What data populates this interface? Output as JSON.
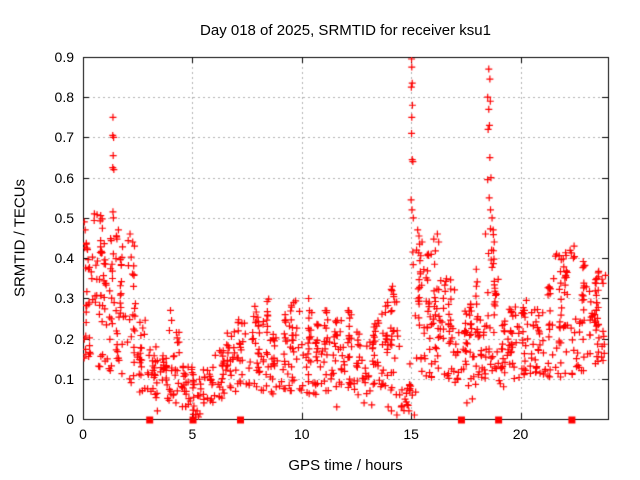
{
  "figure_title": "Day 018 of 2025, SRMTID for receiver ksu1",
  "colors": {
    "background": "#ffffff",
    "frame": "#000000",
    "grid": "#b0b0b0",
    "points": "#ff0000",
    "text": "#000000"
  },
  "chart_data": {
    "type": "scatter",
    "title": "Day 018 of 2025, SRMTID for receiver ksu1",
    "xlabel": "GPS time / hours",
    "ylabel": "SRMTID / TECUs",
    "xlim": [
      0,
      24
    ],
    "ylim": [
      0,
      0.9
    ],
    "xticks": [
      0,
      5,
      10,
      15,
      20
    ],
    "xtick_labels": [
      "0",
      "5",
      "10",
      "15",
      "20"
    ],
    "yticks": [
      0,
      0.1,
      0.2,
      0.3,
      0.4,
      0.5,
      0.6,
      0.7,
      0.8,
      0.9
    ],
    "ytick_labels": [
      "0",
      "0.1",
      "0.2",
      "0.3",
      "0.4",
      "0.5",
      "0.6",
      "0.7",
      "0.8",
      "0.9"
    ],
    "grid": true,
    "legend": null,
    "marker": {
      "shape": "plus",
      "color": "#ff0000",
      "size": 7
    },
    "seed": 20250118,
    "density_bins": {
      "description": "Approximate envelope of the dense + scatter: [x_center_hours, y_min, y_max, n_points, skew_power]",
      "width": 0.5,
      "bins": [
        [
          0.25,
          0.15,
          0.47,
          30,
          1.3
        ],
        [
          0.75,
          0.13,
          0.51,
          30,
          1.4
        ],
        [
          1.25,
          0.12,
          0.45,
          30,
          1.4
        ],
        [
          1.75,
          0.11,
          0.47,
          30,
          1.4
        ],
        [
          2.25,
          0.08,
          0.46,
          26,
          1.7
        ],
        [
          2.75,
          0.06,
          0.25,
          22,
          1.5
        ],
        [
          3.25,
          0.05,
          0.19,
          20,
          1.5
        ],
        [
          3.75,
          0.04,
          0.16,
          20,
          1.5
        ],
        [
          4.25,
          0.04,
          0.22,
          20,
          1.6
        ],
        [
          4.75,
          0.03,
          0.14,
          20,
          1.4
        ],
        [
          5.25,
          0.01,
          0.13,
          20,
          1.3
        ],
        [
          5.75,
          0.04,
          0.13,
          20,
          1.3
        ],
        [
          6.25,
          0.05,
          0.17,
          20,
          1.4
        ],
        [
          6.75,
          0.06,
          0.22,
          22,
          1.5
        ],
        [
          7.25,
          0.07,
          0.26,
          22,
          1.5
        ],
        [
          7.75,
          0.08,
          0.3,
          24,
          1.6
        ],
        [
          8.25,
          0.07,
          0.3,
          24,
          1.5
        ],
        [
          8.75,
          0.06,
          0.22,
          22,
          1.4
        ],
        [
          9.25,
          0.07,
          0.27,
          22,
          1.5
        ],
        [
          9.75,
          0.07,
          0.3,
          24,
          1.6
        ],
        [
          10.25,
          0.06,
          0.3,
          24,
          1.6
        ],
        [
          10.75,
          0.06,
          0.24,
          22,
          1.5
        ],
        [
          11.25,
          0.07,
          0.27,
          24,
          1.5
        ],
        [
          11.75,
          0.07,
          0.25,
          24,
          1.5
        ],
        [
          12.25,
          0.06,
          0.27,
          24,
          1.5
        ],
        [
          12.75,
          0.06,
          0.22,
          22,
          1.4
        ],
        [
          13.25,
          0.07,
          0.25,
          24,
          1.5
        ],
        [
          13.75,
          0.08,
          0.3,
          24,
          1.5
        ],
        [
          14.25,
          0.06,
          0.33,
          24,
          1.7
        ],
        [
          14.75,
          0.02,
          0.15,
          18,
          1.2
        ],
        [
          15.25,
          0.05,
          0.45,
          26,
          1.8
        ],
        [
          15.75,
          0.1,
          0.45,
          28,
          1.6
        ],
        [
          16.25,
          0.12,
          0.45,
          30,
          1.5
        ],
        [
          16.75,
          0.1,
          0.35,
          26,
          1.5
        ],
        [
          17.25,
          0.09,
          0.28,
          24,
          1.5
        ],
        [
          17.75,
          0.08,
          0.3,
          24,
          1.5
        ],
        [
          18.25,
          0.1,
          0.38,
          28,
          1.6
        ],
        [
          18.75,
          0.12,
          0.48,
          34,
          1.6
        ],
        [
          19.25,
          0.08,
          0.25,
          22,
          1.4
        ],
        [
          19.75,
          0.1,
          0.28,
          24,
          1.4
        ],
        [
          20.25,
          0.11,
          0.3,
          24,
          1.4
        ],
        [
          20.75,
          0.11,
          0.28,
          24,
          1.4
        ],
        [
          21.25,
          0.1,
          0.33,
          24,
          1.5
        ],
        [
          21.75,
          0.1,
          0.42,
          24,
          1.6
        ],
        [
          22.25,
          0.11,
          0.43,
          26,
          1.6
        ],
        [
          22.75,
          0.12,
          0.4,
          26,
          1.5
        ],
        [
          23.25,
          0.13,
          0.35,
          26,
          1.4
        ],
        [
          23.75,
          0.14,
          0.37,
          24,
          1.3
        ]
      ]
    },
    "outliers": [
      [
        1.37,
        0.75
      ],
      [
        1.36,
        0.705
      ],
      [
        1.4,
        0.7
      ],
      [
        1.38,
        0.655
      ],
      [
        1.36,
        0.625
      ],
      [
        1.41,
        0.62
      ],
      [
        1.37,
        0.515
      ],
      [
        1.39,
        0.5
      ],
      [
        0.52,
        0.51
      ],
      [
        0.06,
        0.49
      ],
      [
        0.1,
        0.47
      ],
      [
        1.62,
        0.47
      ],
      [
        2.15,
        0.46
      ],
      [
        3.95,
        0.22
      ],
      [
        4.0,
        0.27
      ],
      [
        4.05,
        0.245
      ],
      [
        15.02,
        0.895
      ],
      [
        15.03,
        0.875
      ],
      [
        15.05,
        0.835
      ],
      [
        15.01,
        0.825
      ],
      [
        15.06,
        0.78
      ],
      [
        15.03,
        0.75
      ],
      [
        15.02,
        0.71
      ],
      [
        15.05,
        0.645
      ],
      [
        15.08,
        0.64
      ],
      [
        15.0,
        0.545
      ],
      [
        15.04,
        0.52
      ],
      [
        15.1,
        0.5
      ],
      [
        15.3,
        0.47
      ],
      [
        15.36,
        0.455
      ],
      [
        15.5,
        0.44
      ],
      [
        15.25,
        0.42
      ],
      [
        18.55,
        0.87
      ],
      [
        18.6,
        0.845
      ],
      [
        18.5,
        0.8
      ],
      [
        18.62,
        0.79
      ],
      [
        18.55,
        0.77
      ],
      [
        18.58,
        0.73
      ],
      [
        18.52,
        0.72
      ],
      [
        18.6,
        0.65
      ],
      [
        18.65,
        0.6
      ],
      [
        18.5,
        0.595
      ],
      [
        18.57,
        0.55
      ],
      [
        18.63,
        0.52
      ],
      [
        18.7,
        0.5
      ],
      [
        18.75,
        0.47
      ],
      [
        18.4,
        0.46
      ],
      [
        18.8,
        0.44
      ],
      [
        18.68,
        0.42
      ],
      [
        16.2,
        0.46
      ],
      [
        16.26,
        0.44
      ],
      [
        14.15,
        0.33
      ],
      [
        14.2,
        0.31
      ],
      [
        21.65,
        0.41
      ],
      [
        22.45,
        0.43
      ],
      [
        22.42,
        0.4
      ],
      [
        22.9,
        0.38
      ],
      [
        3.4,
        0.02
      ],
      [
        5.15,
        0.01
      ],
      [
        5.22,
        0.02
      ],
      [
        5.28,
        0.005
      ],
      [
        11.6,
        0.03
      ],
      [
        12.85,
        0.04
      ],
      [
        13.2,
        0.035
      ],
      [
        13.95,
        0.03
      ],
      [
        14.1,
        0.02
      ],
      [
        14.35,
        0.01
      ],
      [
        14.55,
        0.03
      ],
      [
        14.9,
        0.02
      ],
      [
        15.15,
        0.01
      ],
      [
        17.55,
        0.04
      ],
      [
        17.8,
        0.05
      ]
    ],
    "axis_markers": {
      "description": "Filled red squares sitting on the x-axis (y = 0)",
      "shape": "square",
      "color": "#ff0000",
      "size": 7,
      "y": 0,
      "x": [
        3.05,
        5.03,
        7.2,
        17.3,
        19.0,
        22.35
      ]
    }
  }
}
